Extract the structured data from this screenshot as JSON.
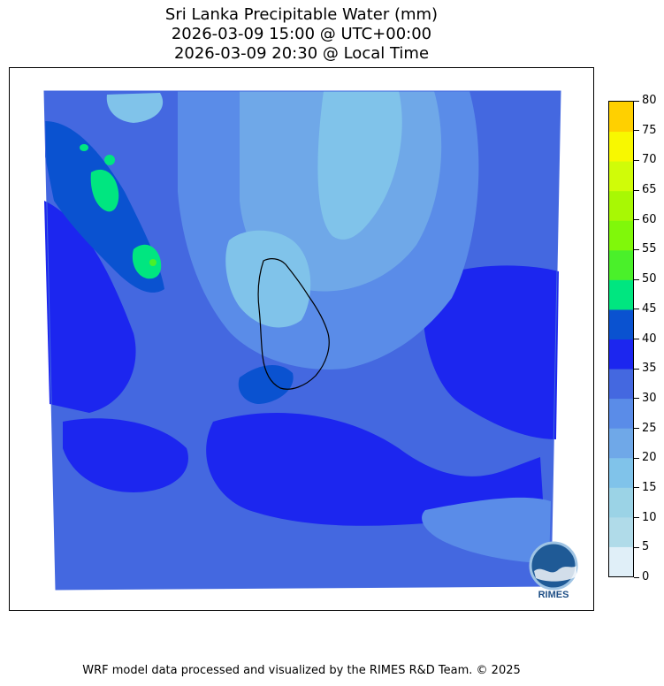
{
  "title": {
    "line1": "Sri Lanka Precipitable Water (mm)",
    "line2": "2026-03-09 15:00 @ UTC+00:00",
    "line3": "2026-03-09 20:30 @ Local Time"
  },
  "colorbar": {
    "ticks": [
      "0",
      "5",
      "10",
      "15",
      "20",
      "25",
      "30",
      "35",
      "40",
      "45",
      "50",
      "55",
      "60",
      "65",
      "70",
      "75",
      "80"
    ],
    "levels": [
      0,
      5,
      10,
      15,
      20,
      25,
      30,
      35,
      40,
      45,
      50,
      55,
      60,
      65,
      70,
      75,
      80
    ],
    "colors": [
      "#e0eff8",
      "#b0dbe9",
      "#9bd3e6",
      "#80c3ea",
      "#6fa8e8",
      "#5a8ce8",
      "#4468e0",
      "#1c26ef",
      "#0a52d0",
      "#00e680",
      "#4af02a",
      "#80f80a",
      "#a8f804",
      "#d0fc08",
      "#f8f800",
      "#ffd000"
    ]
  },
  "logo": {
    "text": "RIMES"
  },
  "footer": {
    "text": "WRF model data processed and visualized by the RIMES R&D Team. © 2025"
  }
}
